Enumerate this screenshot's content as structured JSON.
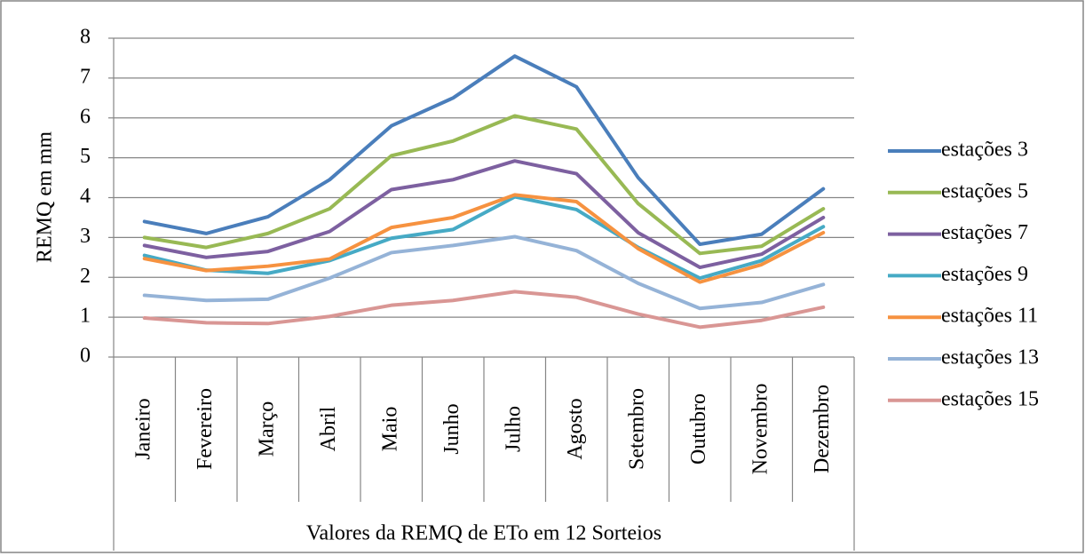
{
  "chart_data": {
    "type": "line",
    "x_label": "Valores da REMQ de ETo em 12 Sorteios",
    "y_label": "REMQ em mm",
    "categories": [
      "Janeiro",
      "Fevereiro",
      "Março",
      "Abril",
      "Maio",
      "Junho",
      "Julho",
      "Agosto",
      "Setembro",
      "Outubro",
      "Novembro",
      "Dezembro"
    ],
    "ylim": [
      0,
      8
    ],
    "yticks": [
      0,
      1,
      2,
      3,
      4,
      5,
      6,
      7,
      8
    ],
    "grid": true,
    "legend": "right",
    "series": [
      {
        "name": "estações 3",
        "color": "#4a7ebb",
        "values": [
          3.4,
          3.1,
          3.52,
          4.45,
          5.8,
          6.5,
          7.55,
          6.78,
          4.5,
          2.83,
          3.08,
          4.22
        ]
      },
      {
        "name": "estações 5",
        "color": "#98b954",
        "values": [
          3.0,
          2.75,
          3.1,
          3.72,
          5.05,
          5.42,
          6.05,
          5.72,
          3.85,
          2.6,
          2.78,
          3.72
        ]
      },
      {
        "name": "estações 7",
        "color": "#7d60a0",
        "values": [
          2.8,
          2.5,
          2.65,
          3.15,
          4.2,
          4.45,
          4.92,
          4.6,
          3.12,
          2.25,
          2.58,
          3.5
        ]
      },
      {
        "name": "estações 9",
        "color": "#46aac5",
        "values": [
          2.55,
          2.18,
          2.1,
          2.42,
          2.98,
          3.2,
          4.02,
          3.7,
          2.75,
          1.98,
          2.42,
          3.27
        ]
      },
      {
        "name": "estações 11",
        "color": "#f69240",
        "values": [
          2.47,
          2.17,
          2.28,
          2.46,
          3.25,
          3.5,
          4.07,
          3.9,
          2.72,
          1.88,
          2.32,
          3.12
        ]
      },
      {
        "name": "estações 13",
        "color": "#95b3d7",
        "values": [
          1.55,
          1.42,
          1.45,
          1.98,
          2.62,
          2.8,
          3.02,
          2.67,
          1.85,
          1.22,
          1.37,
          1.82
        ]
      },
      {
        "name": "estações 15",
        "color": "#d99694",
        "values": [
          0.98,
          0.86,
          0.84,
          1.02,
          1.3,
          1.42,
          1.64,
          1.5,
          1.08,
          0.75,
          0.92,
          1.25
        ]
      }
    ]
  }
}
